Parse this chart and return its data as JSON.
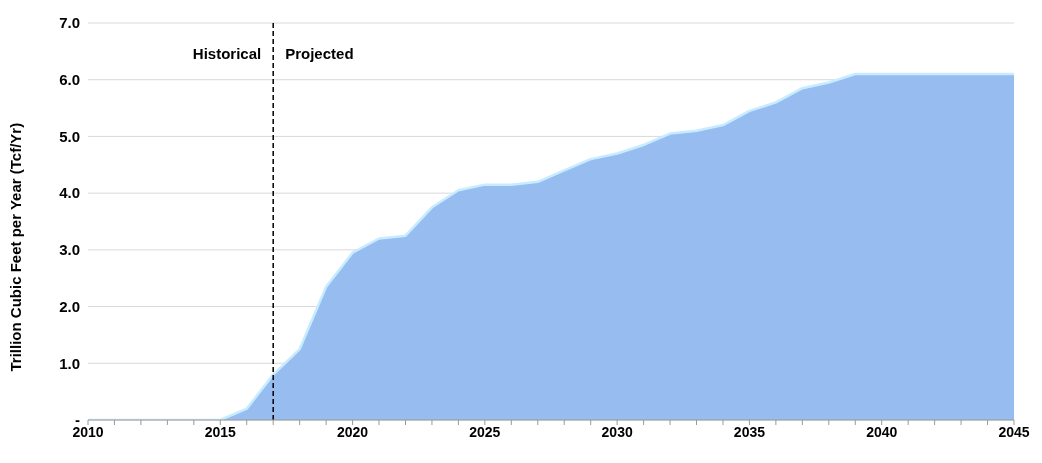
{
  "chart_data": {
    "type": "area",
    "ylabel": "Trillion Cubic Feet per Year (Tcf/Yr)",
    "annotations": [
      "Historical",
      "Projected"
    ],
    "x": [
      2010,
      2011,
      2012,
      2013,
      2014,
      2015,
      2016,
      2017,
      2018,
      2019,
      2020,
      2021,
      2022,
      2023,
      2024,
      2025,
      2026,
      2027,
      2028,
      2029,
      2030,
      2031,
      2032,
      2033,
      2034,
      2035,
      2036,
      2037,
      2038,
      2039,
      2040,
      2041,
      2042,
      2043,
      2044,
      2045
    ],
    "series": [
      {
        "color": "#97bdf0",
        "values": [
          0,
          0,
          0,
          0,
          0,
          0,
          0.2,
          0.8,
          1.25,
          2.35,
          2.95,
          3.2,
          3.25,
          3.75,
          4.05,
          4.15,
          4.15,
          4.2,
          4.4,
          4.6,
          4.7,
          4.85,
          5.05,
          5.1,
          5.2,
          5.45,
          5.6,
          5.85,
          5.95,
          6.1,
          6.1,
          6.1,
          6.1,
          6.1,
          6.1,
          6.1
        ]
      }
    ],
    "xlim": [
      2010,
      2045
    ],
    "xticks": [
      2010,
      {
        "value": 2011,
        "label": null
      },
      {
        "value": 2012,
        "label": null
      },
      {
        "value": 2013,
        "label": null
      },
      {
        "value": 2014,
        "label": null
      },
      2015,
      {
        "value": 2016,
        "label": null
      },
      {
        "value": 2017,
        "label": null
      },
      {
        "value": 2018,
        "label": null
      },
      {
        "value": 2019,
        "label": null
      },
      2020,
      {
        "value": 2021,
        "label": null
      },
      {
        "value": 2022,
        "label": null
      },
      {
        "value": 2023,
        "label": null
      },
      {
        "value": 2024,
        "label": null
      },
      2025,
      {
        "value": 2026,
        "label": null
      },
      {
        "value": 2027,
        "label": null
      },
      {
        "value": 2028,
        "label": null
      },
      {
        "value": 2029,
        "label": null
      },
      2030,
      {
        "value": 2031,
        "label": null
      },
      {
        "value": 2032,
        "label": null
      },
      {
        "value": 2033,
        "label": null
      },
      {
        "value": 2034,
        "label": null
      },
      2035,
      {
        "value": 2036,
        "label": null
      },
      {
        "value": 2037,
        "label": null
      },
      {
        "value": 2038,
        "label": null
      },
      {
        "value": 2039,
        "label": null
      },
      2040,
      {
        "value": 2041,
        "label": null
      },
      {
        "value": 2042,
        "label": null
      },
      {
        "value": 2043,
        "label": null
      },
      {
        "value": 2044,
        "label": null
      },
      2045
    ],
    "ylim": [
      0,
      7
    ],
    "yticks": [
      {
        "value": 0,
        "label": "-"
      },
      {
        "value": 1,
        "label": "1.0"
      },
      {
        "value": 2,
        "label": "2.0"
      },
      {
        "value": 3,
        "label": "3.0"
      },
      {
        "value": 4,
        "label": "4.0"
      },
      {
        "value": 5,
        "label": "5.0"
      },
      {
        "value": 6,
        "label": "6.0"
      },
      {
        "value": 7,
        "label": "7.0"
      }
    ],
    "grid": "y",
    "ref_lines": [
      {
        "axis": "x",
        "value": 2017,
        "color": "#000000",
        "line_style": "dashed"
      }
    ]
  }
}
